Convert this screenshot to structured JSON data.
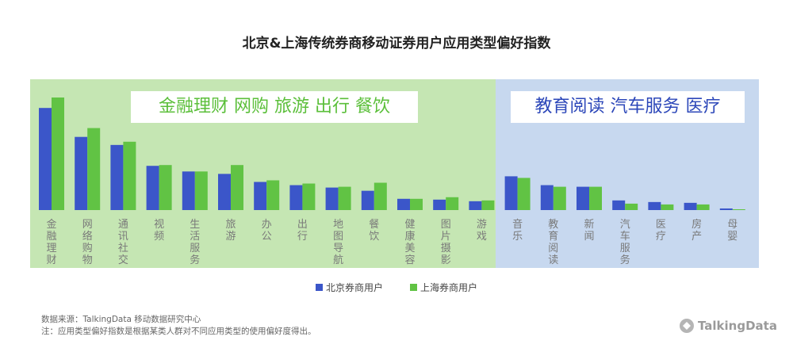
{
  "title": "北京&上海传统券商移动证券用户应用类型偏好指数",
  "highlight_left": "金融理财  网购  旅游  出行  餐饮",
  "highlight_right": "教育阅读  汽车服务  医疗",
  "colors": {
    "beijing": "#3b56c9",
    "shanghai": "#61c344",
    "panel_green": "#c5e6b3",
    "panel_blue": "#c7d8ef"
  },
  "chart_data": {
    "type": "bar",
    "categories": [
      "金融理财",
      "网络购物",
      "通讯社交",
      "视频",
      "生活服务",
      "旅游",
      "办公",
      "出行",
      "地图导航",
      "餐饮",
      "健康美容",
      "图片摄影",
      "游戏",
      "音乐",
      "教育阅读",
      "新闻",
      "汽车服务",
      "医疗",
      "房产",
      "母婴"
    ],
    "series": [
      {
        "name": "北京券商用户",
        "values": [
          127,
          91,
          81,
          55,
          48,
          45,
          35,
          31,
          28,
          24,
          14,
          13,
          11,
          42,
          31,
          29,
          12,
          10,
          9,
          2
        ]
      },
      {
        "name": "上海券商用户",
        "values": [
          140,
          102,
          85,
          56,
          48,
          56,
          37,
          33,
          29,
          34,
          14,
          16,
          12,
          40,
          29,
          29,
          8,
          7,
          7,
          1
        ]
      }
    ],
    "ylim": [
      0,
      140
    ]
  },
  "legend": {
    "beijing": "北京券商用户",
    "shanghai": "上海券商用户"
  },
  "footnotes": [
    "数据来源：TalkingData 移动数据研究中心",
    "注：应用类型偏好指数是根据某类人群对不同应用类型的使用偏好度得出。"
  ],
  "logo_text": "TalkingData"
}
